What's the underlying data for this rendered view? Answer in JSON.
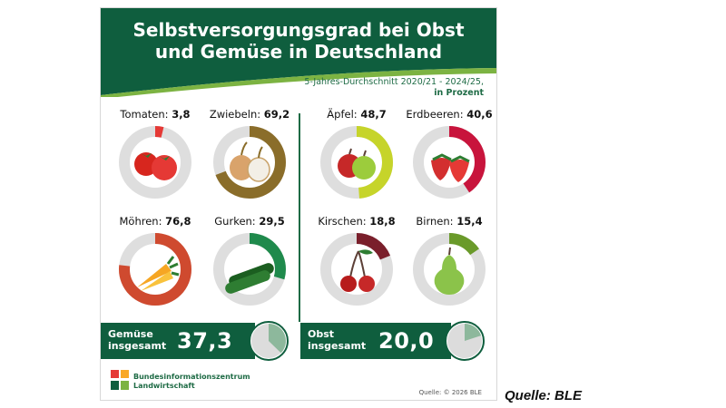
{
  "title_line1": "Selbstversorgungsgrad bei Obst",
  "title_line2": "und Gemüse in Deutschland",
  "subtitle_line1": "5-Jahres-Durchschnitt  2020/21 - 2024/25,",
  "subtitle_line2": "in Prozent",
  "colors": {
    "header_green": "#0f5e3e",
    "accent_light_green": "#7cb342",
    "ring_track": "#dedede"
  },
  "chart_data": {
    "type": "donut",
    "title": "Selbstversorgungsgrad bei Obst und Gemüse in Deutschland",
    "subtitle": "5-Jahres-Durchschnitt 2020/21 - 2024/25, in Prozent",
    "unit": "Prozent",
    "groups": [
      {
        "name": "Gemüse",
        "total_label_line1": "Gemüse",
        "total_label_line2": "insgesamt",
        "total_value": "37,3",
        "total_pct": 37.3,
        "items": [
          {
            "label": "Tomaten:",
            "value": "3,8",
            "pct": 3.8,
            "color": "#e53935",
            "icon": "tomato-icon"
          },
          {
            "label": "Zwiebeln:",
            "value": "69,2",
            "pct": 69.2,
            "color": "#8a6d2a",
            "icon": "onion-icon"
          },
          {
            "label": "Möhren:",
            "value": "76,8",
            "pct": 76.8,
            "color": "#cf4a2f",
            "icon": "carrot-icon"
          },
          {
            "label": "Gurken:",
            "value": "29,5",
            "pct": 29.5,
            "color": "#1f8a4c",
            "icon": "cucumber-icon"
          }
        ]
      },
      {
        "name": "Obst",
        "total_label_line1": "Obst",
        "total_label_line2": "insgesamt",
        "total_value": "20,0",
        "total_pct": 20.0,
        "items": [
          {
            "label": "Äpfel:",
            "value": "48,7",
            "pct": 48.7,
            "color": "#c6d42a",
            "icon": "apple-icon"
          },
          {
            "label": "Erdbeeren:",
            "value": "40,6",
            "pct": 40.6,
            "color": "#c8143c",
            "icon": "strawberry-icon"
          },
          {
            "label": "Kirschen:",
            "value": "18,8",
            "pct": 18.8,
            "color": "#7a1f2b",
            "icon": "cherry-icon"
          },
          {
            "label": "Birnen:",
            "value": "15,4",
            "pct": 15.4,
            "color": "#6a9a2a",
            "icon": "pear-icon"
          }
        ]
      }
    ]
  },
  "logo_line1": "Bundesinformationszentrum",
  "logo_line2": "Landwirtschaft",
  "copyright": "Quelle: © 2026 BLE",
  "source": "Quelle: BLE"
}
